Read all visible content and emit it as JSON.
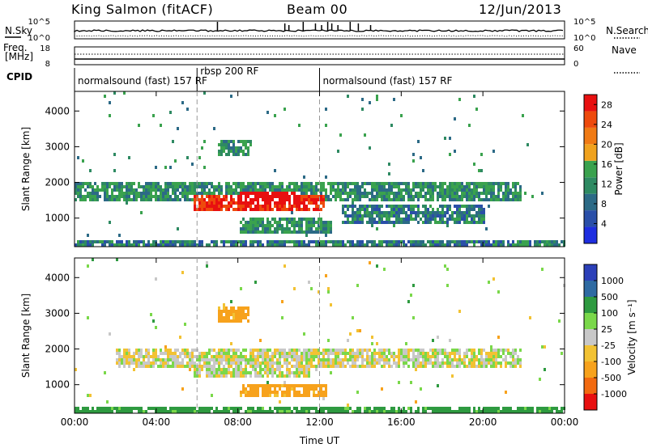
{
  "header": {
    "station": "King Salmon (fitACF)",
    "beam": "Beam 00",
    "date": "12/Jun/2013"
  },
  "panels": {
    "nsky_label": "N.Sky",
    "nsearch_label": "N.Search",
    "nsky_ticks": [
      "10^5",
      "10^0"
    ],
    "freq_label": "Freq.",
    "freq_unit": "[MHz]",
    "freq_ticks": [
      "18",
      "8"
    ],
    "nave_label": "Nave",
    "nave_ticks": [
      "60",
      "0"
    ],
    "cpid_label": "CPID"
  },
  "cpid_segments": [
    {
      "label": "normalsound (fast) 157 RF",
      "start_h": 0,
      "end_h": 6
    },
    {
      "label": "rbsp 200 RF",
      "start_h": 6,
      "end_h": 12
    },
    {
      "label": "normalsound (fast) 157 RF",
      "start_h": 12,
      "end_h": 24
    }
  ],
  "colors": {
    "power_scale": [
      "#1e2ee0",
      "#2a4fa8",
      "#2c6a86",
      "#2e8a62",
      "#3aa24e",
      "#f0a21e",
      "#f07a14",
      "#ee4a0c",
      "#e81010"
    ],
    "velocity_scale": [
      "#e81010",
      "#f26a10",
      "#f7a21c",
      "#f2c233",
      "#c8c8c8",
      "#7ad84a",
      "#2e9a40",
      "#2e6aa2",
      "#2b3fb8"
    ],
    "missing": "#ffffff"
  },
  "chart_data": [
    {
      "type": "heatmap",
      "title": "",
      "xlabel": "Time UT",
      "ylabel": "Slant Range [km]",
      "x_ticks": [
        "00:00",
        "04:00",
        "08:00",
        "12:00",
        "16:00",
        "20:00",
        "00:00"
      ],
      "xlim_hours": [
        0,
        24
      ],
      "y_ticks": [
        1000,
        2000,
        3000,
        4000
      ],
      "ylim": [
        200,
        4550
      ],
      "colorbar": {
        "label": "Power [dB]",
        "ticks": [
          4,
          8,
          12,
          16,
          20,
          24,
          28
        ],
        "range": [
          0,
          30
        ]
      },
      "regions": [
        {
          "t": [
            0.0,
            21.8
          ],
          "r": [
            1550,
            2100
          ],
          "value": 8,
          "note": "main E/F echo band"
        },
        {
          "t": [
            5.8,
            12.2
          ],
          "r": [
            1250,
            1700
          ],
          "value": 24,
          "note": "strong scatter core"
        },
        {
          "t": [
            8.0,
            11.0
          ],
          "r": [
            1400,
            1750
          ],
          "value": 28,
          "note": "peak power"
        },
        {
          "t": [
            8.0,
            12.5
          ],
          "r": [
            650,
            1050
          ],
          "value": 8,
          "note": "lower echo band"
        },
        {
          "t": [
            7.0,
            8.5
          ],
          "r": [
            2750,
            3200
          ],
          "value": 8,
          "note": "upper patch"
        },
        {
          "t": [
            13.0,
            20.0
          ],
          "r": [
            900,
            1450
          ],
          "value": 6,
          "note": "afternoon faint band"
        },
        {
          "t": [
            0.0,
            24.0
          ],
          "r": [
            200,
            450
          ],
          "value": 6,
          "note": "near-range ground scatter"
        }
      ]
    },
    {
      "type": "heatmap",
      "title": "",
      "xlabel": "Time UT",
      "ylabel": "Slant Range [km]",
      "x_ticks": [
        "00:00",
        "04:00",
        "08:00",
        "12:00",
        "16:00",
        "20:00",
        "00:00"
      ],
      "xlim_hours": [
        0,
        24
      ],
      "y_ticks": [
        1000,
        2000,
        3000,
        4000
      ],
      "ylim": [
        200,
        4550
      ],
      "colorbar": {
        "label": "Velocity [m s^-1]",
        "ticks": [
          1000,
          500,
          100,
          25,
          -25,
          -100,
          -500,
          -1000
        ],
        "range": [
          -1200,
          1200
        ]
      },
      "regions": [
        {
          "t": [
            2.0,
            21.8
          ],
          "r": [
            1550,
            2050
          ],
          "value": 0,
          "note": "ground scatter (grey)"
        },
        {
          "t": [
            5.8,
            11.5
          ],
          "r": [
            1250,
            1650
          ],
          "value": 0,
          "note": "grey core"
        },
        {
          "t": [
            8.0,
            12.3
          ],
          "r": [
            700,
            1050
          ],
          "value": -150,
          "note": "orange negative band"
        },
        {
          "t": [
            7.0,
            8.5
          ],
          "r": [
            2750,
            3200
          ],
          "value": -150,
          "note": "upper patch"
        },
        {
          "t": [
            0.0,
            24.0
          ],
          "r": [
            200,
            450
          ],
          "value": 150,
          "note": "near-range mixed"
        }
      ]
    }
  ],
  "axis_labels": {
    "xlabel": "Time UT",
    "ylabel": "Slant Range [km]",
    "power_label": "Power [dB]",
    "velocity_label": "Velocity [m s⁻¹]"
  }
}
